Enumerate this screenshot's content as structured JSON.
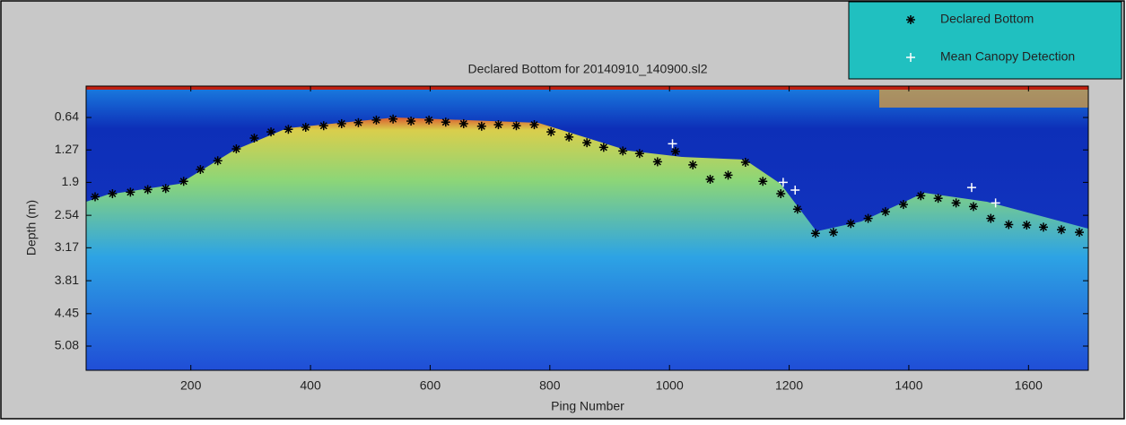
{
  "chart_data": {
    "type": "scatter",
    "title": "Declared Bottom for 20140910_140900.sl2",
    "x_label": "Ping Number",
    "y_label": "Depth (m)",
    "xlim": [
      25,
      1700
    ],
    "ylim": [
      0.03,
      5.55
    ],
    "y_reversed": true,
    "xticks": [
      200,
      400,
      600,
      800,
      1000,
      1200,
      1400,
      1600
    ],
    "yticks": [
      0.64,
      1.27,
      1.9,
      2.54,
      3.17,
      3.81,
      4.45,
      5.08
    ],
    "legend_position": "top-right",
    "series": [
      {
        "name": "Declared Bottom",
        "color": "#000000",
        "marker": "asterisk",
        "x": [
          40,
          69,
          99,
          128,
          158,
          188,
          216,
          245,
          276,
          306,
          334,
          363,
          392,
          422,
          452,
          480,
          510,
          538,
          568,
          598,
          626,
          656,
          686,
          714,
          744,
          774,
          802,
          832,
          862,
          890,
          922,
          950,
          980,
          1010,
          1039,
          1068,
          1098,
          1127,
          1156,
          1186,
          1214,
          1244,
          1274,
          1303,
          1332,
          1361,
          1391,
          1420,
          1449,
          1479,
          1508,
          1537,
          1567,
          1597,
          1625,
          1655,
          1685
        ],
        "values": [
          2.18,
          2.12,
          2.09,
          2.04,
          2.02,
          1.88,
          1.65,
          1.48,
          1.25,
          1.04,
          0.92,
          0.87,
          0.83,
          0.8,
          0.76,
          0.74,
          0.69,
          0.67,
          0.71,
          0.69,
          0.73,
          0.76,
          0.81,
          0.78,
          0.8,
          0.78,
          0.92,
          1.02,
          1.13,
          1.22,
          1.29,
          1.34,
          1.5,
          1.3,
          1.56,
          1.84,
          1.76,
          1.51,
          1.88,
          2.12,
          2.42,
          2.89,
          2.87,
          2.7,
          2.6,
          2.47,
          2.33,
          2.16,
          2.21,
          2.3,
          2.37,
          2.6,
          2.72,
          2.73,
          2.77,
          2.82,
          2.87
        ]
      },
      {
        "name": "Mean Canopy Detection",
        "color": "#ffffff",
        "marker": "plus",
        "x": [
          1005,
          1190,
          1210,
          1505,
          1545
        ],
        "values": [
          1.15,
          1.9,
          2.05,
          2.0,
          2.3
        ]
      }
    ]
  }
}
